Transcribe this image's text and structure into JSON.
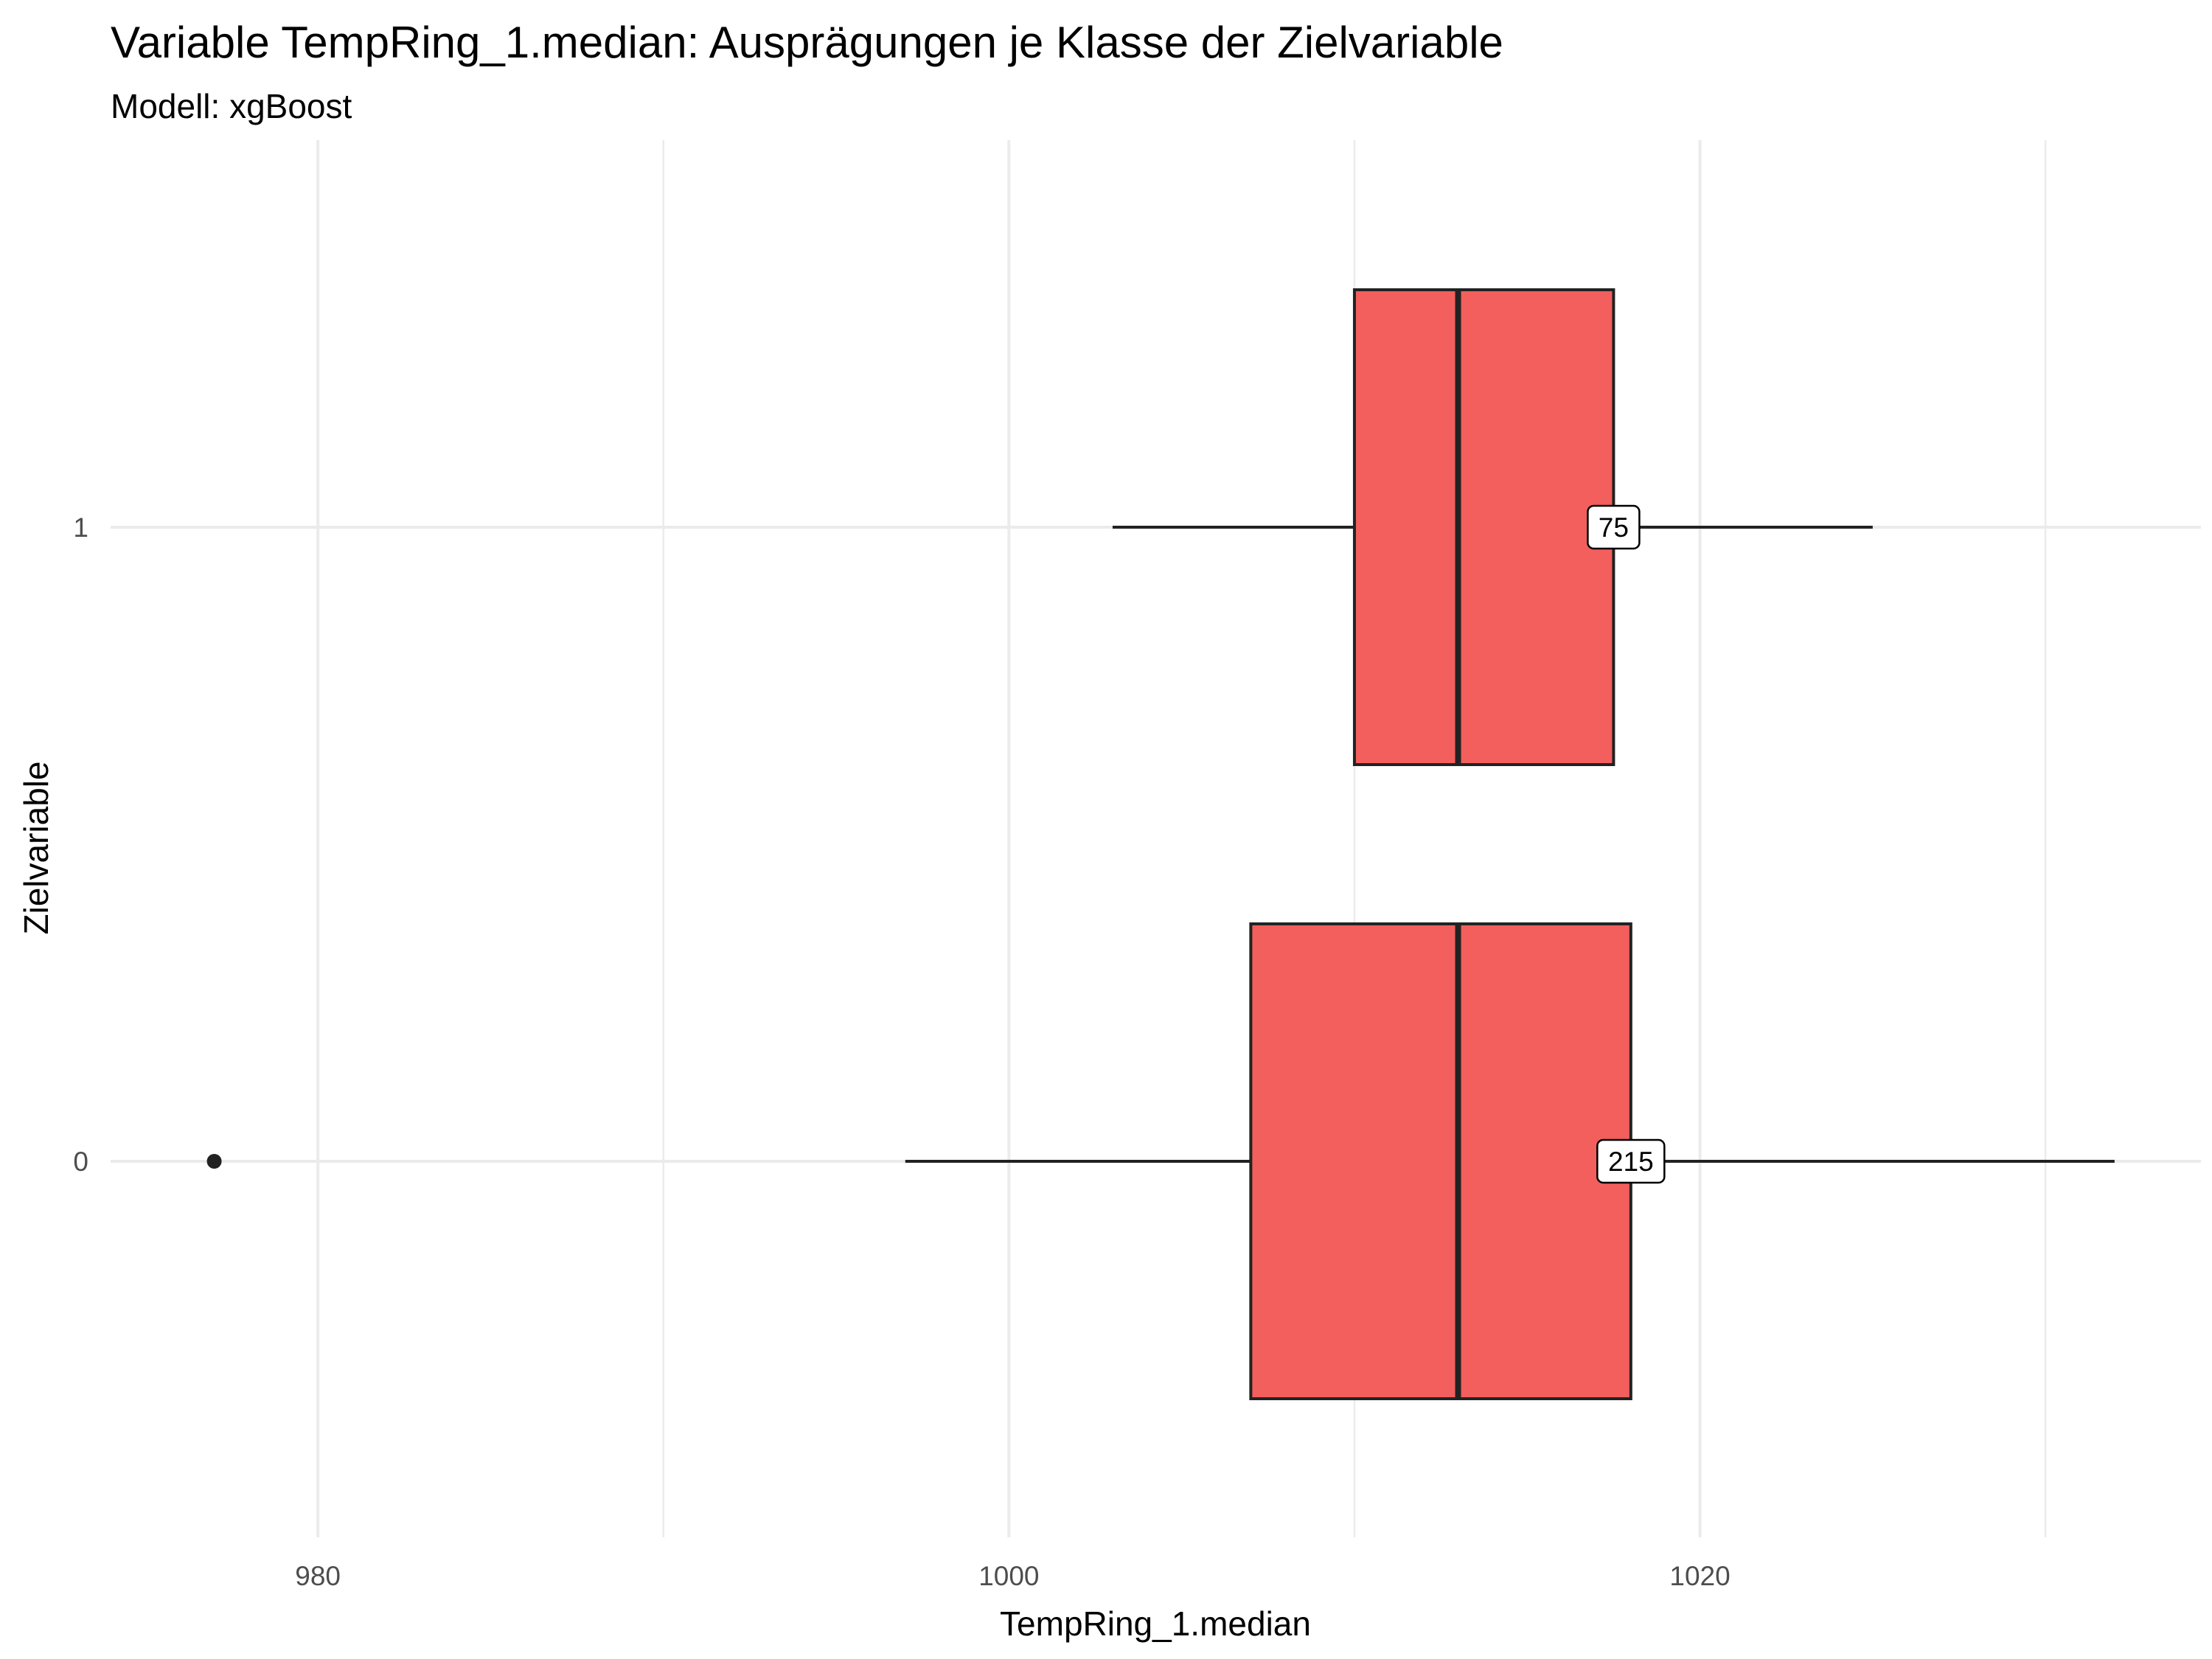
{
  "chart_data": {
    "type": "boxplot",
    "orientation": "horizontal",
    "title": "Variable TempRing_1.median: Ausprägungen je Klasse der Zielvariable",
    "subtitle": "Modell: xgBoost",
    "xlabel": "TempRing_1.median",
    "ylabel": "Zielvariable",
    "xlim": [
      974,
      1034.5
    ],
    "x_ticks": [
      980,
      1000,
      1020
    ],
    "x_minor_ticks": [
      990,
      1010,
      1030
    ],
    "categories": [
      "0",
      "1"
    ],
    "series": [
      {
        "name": "0",
        "whisker_low": 997,
        "q1": 1007,
        "median": 1013,
        "q3": 1018,
        "whisker_high": 1032,
        "outliers": [
          977
        ],
        "count_label": "215"
      },
      {
        "name": "1",
        "whisker_low": 1003,
        "q1": 1010,
        "median": 1013,
        "q3": 1017.5,
        "whisker_high": 1025,
        "outliers": [],
        "count_label": "75"
      }
    ],
    "fill_color": "#f25f5c",
    "grid": true,
    "legend": "none"
  }
}
